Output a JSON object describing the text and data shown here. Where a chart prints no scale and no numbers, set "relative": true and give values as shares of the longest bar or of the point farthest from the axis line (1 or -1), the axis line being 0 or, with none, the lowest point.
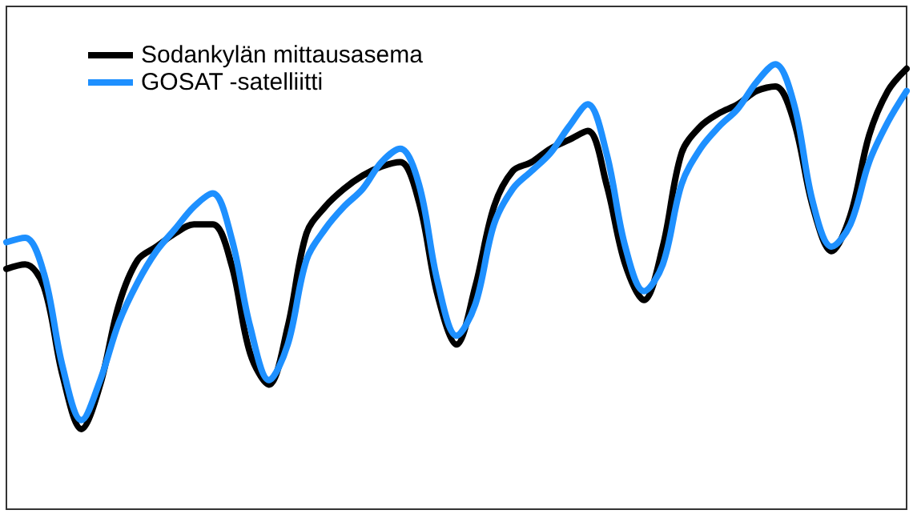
{
  "chart_data": {
    "type": "line",
    "relative": true,
    "categories": [
      null,
      null,
      null,
      null,
      null,
      null,
      null,
      null,
      null,
      null,
      null,
      null,
      null,
      null,
      null,
      null,
      null,
      null,
      null,
      null,
      null,
      null,
      null,
      null,
      null,
      null,
      null,
      null,
      null,
      null,
      null,
      null,
      null,
      null,
      null,
      null,
      null,
      null,
      null,
      null,
      null,
      null,
      null,
      null,
      null,
      null,
      null,
      null,
      null
    ],
    "series": [
      {
        "name": "Sodankylän mittausasema",
        "color": "#000000",
        "values": [
          0.54,
          0.55,
          0.5,
          0.3,
          0.18,
          0.28,
          0.46,
          0.56,
          0.59,
          0.62,
          0.64,
          0.64,
          0.55,
          0.35,
          0.28,
          0.41,
          0.62,
          0.68,
          0.72,
          0.75,
          0.77,
          0.78,
          0.69,
          0.48,
          0.37,
          0.5,
          0.68,
          0.76,
          0.78,
          0.81,
          0.83,
          0.85,
          0.73,
          0.55,
          0.47,
          0.59,
          0.8,
          0.86,
          0.89,
          0.91,
          0.94,
          0.95,
          0.87,
          0.68,
          0.58,
          0.66,
          0.84,
          0.94,
          0.99
        ]
      },
      {
        "name": "GOSAT -satelliitti",
        "color": "#1e90ff",
        "values": [
          0.6,
          0.61,
          0.53,
          0.32,
          0.2,
          0.29,
          0.42,
          0.51,
          0.58,
          0.63,
          0.68,
          0.71,
          0.61,
          0.41,
          0.29,
          0.37,
          0.56,
          0.63,
          0.68,
          0.72,
          0.78,
          0.81,
          0.73,
          0.51,
          0.39,
          0.46,
          0.64,
          0.72,
          0.76,
          0.8,
          0.86,
          0.91,
          0.8,
          0.59,
          0.49,
          0.55,
          0.73,
          0.81,
          0.86,
          0.9,
          0.96,
          1,
          0.91,
          0.69,
          0.59,
          0.64,
          0.78,
          0.87,
          0.94
        ]
      }
    ],
    "legend": "top left",
    "grid": false,
    "marker": "none",
    "line_style": "solid"
  }
}
